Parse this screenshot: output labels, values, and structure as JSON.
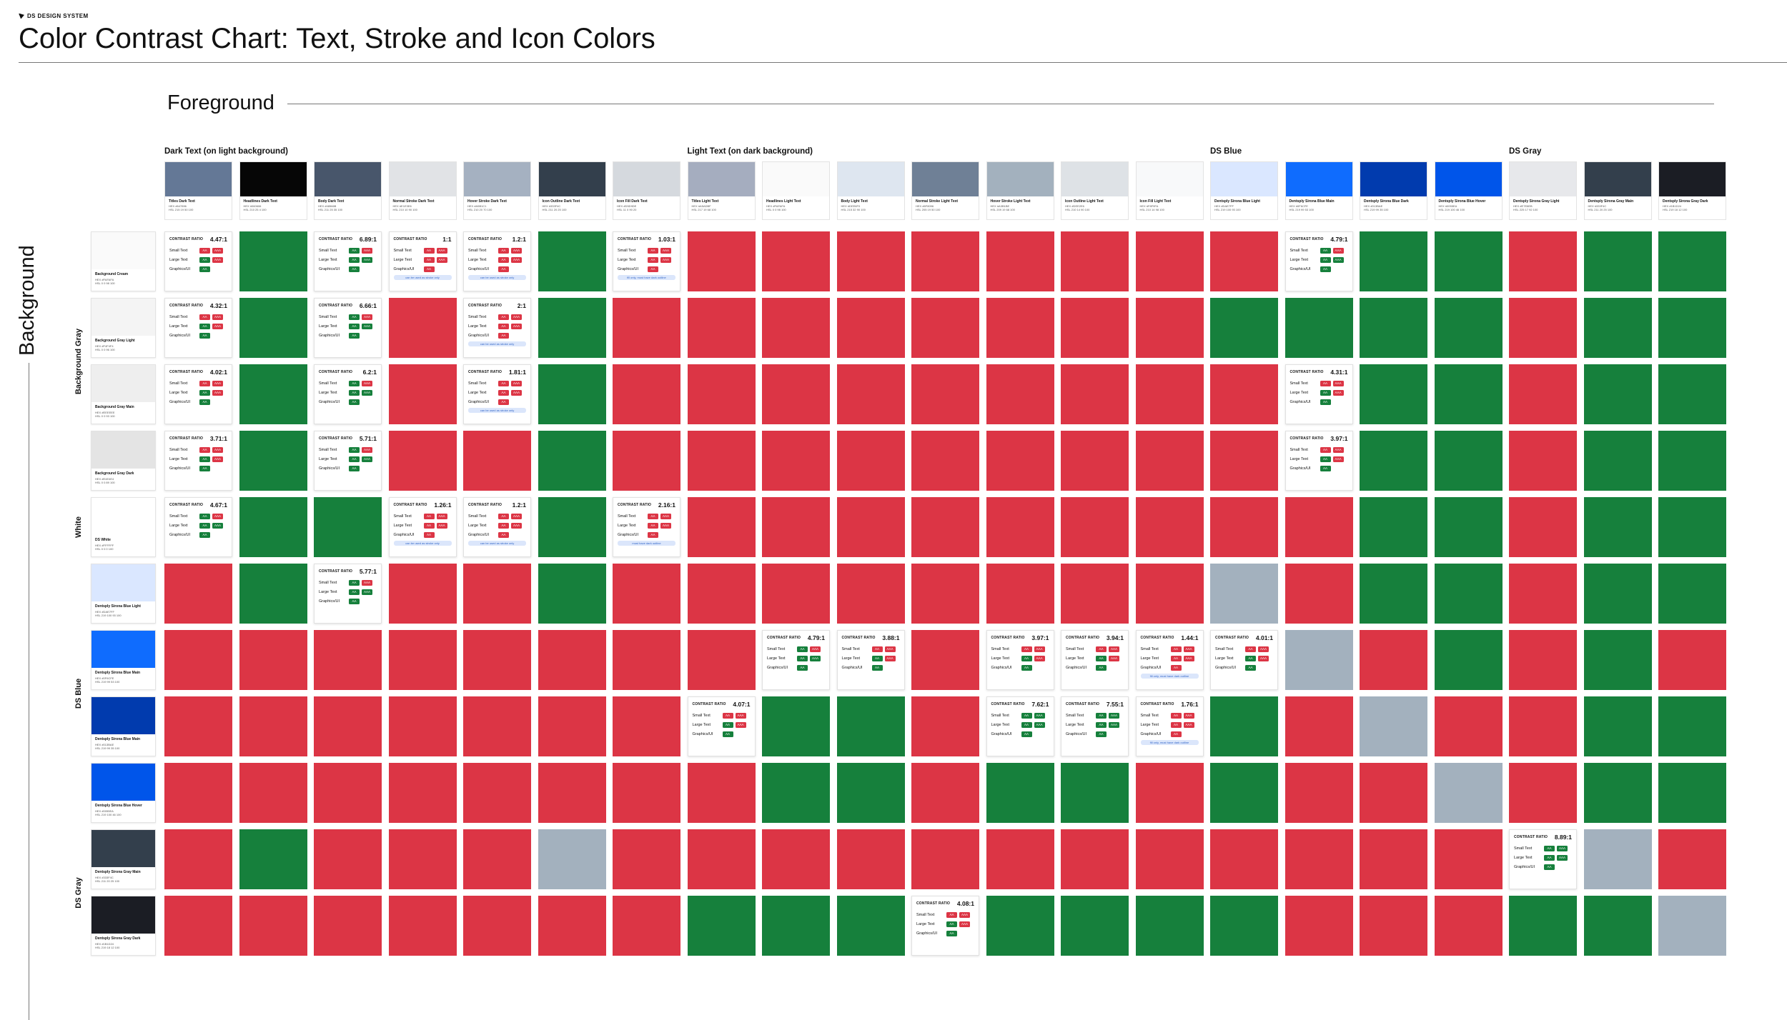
{
  "header": {
    "brand": "DS DESIGN SYSTEM",
    "title": "Color Contrast Chart: Text, Stroke and Icon Colors"
  },
  "foreground_title": "Foreground",
  "background_title": "Background",
  "labels": {
    "contrast_ratio": "CONTRAST RATIO",
    "small_text": "Small Text",
    "large_text": "Large Text",
    "graphics": "Graphics/UI",
    "aa": "AA",
    "aaa": "AAA",
    "hex": "HEX",
    "hsl": "HSL"
  },
  "column_groups": [
    {
      "label": "Dark Text (on light background)",
      "start": 0
    },
    {
      "label": "Light Text (on dark background)",
      "start": 7
    },
    {
      "label": "DS Blue",
      "start": 14
    },
    {
      "label": "DS Gray",
      "start": 18
    }
  ],
  "row_groups": [
    {
      "label": "Background Gray",
      "rows": [
        0,
        3
      ]
    },
    {
      "label": "White",
      "rows": [
        4,
        4
      ]
    },
    {
      "label": "DS Blue",
      "rows": [
        5,
        8
      ]
    },
    {
      "label": "DS Gray",
      "rows": [
        9,
        10
      ]
    }
  ],
  "foregrounds": [
    {
      "name": "Titles Dark Text",
      "hex": "#647896",
      "hsl": "215 19 50 100",
      "color": "#647896"
    },
    {
      "name": "Headlines Dark Text",
      "hex": "#060606",
      "hsl": "210 25 4 100",
      "color": "#060606"
    },
    {
      "name": "Body Dark Text",
      "hex": "#48566B",
      "hsl": "211 25 35 100",
      "color": "#48566b"
    },
    {
      "name": "Normal Stroke Dark Text",
      "hex": "#E1E3E6",
      "hsl": "210 10 90 100",
      "color": "#e1e3e6"
    },
    {
      "name": "Hover Stroke Dark Text",
      "hex": "#A5B1C1",
      "hsl": "210 20 70 100",
      "color": "#a5b1c1"
    },
    {
      "name": "Icon Outline Dark Text",
      "hex": "#333F4C",
      "hsl": "211 20 25 100",
      "color": "#333f4c"
    },
    {
      "name": "Icon Fill Dark Text",
      "hex": "#D5D9DE",
      "hsl": "11 0 90 20",
      "color": "#d5d9de"
    },
    {
      "name": "Titles Light Text",
      "hex": "#A5ADBF",
      "hsl": "217 19 68 100",
      "color": "#a5adbf"
    },
    {
      "name": "Headlines Light Text",
      "hex": "#FAFAFA",
      "hsl": "0 0 98 100",
      "color": "#fafafa"
    },
    {
      "name": "Body Light Text",
      "hex": "#DEE6F0",
      "hsl": "215 32 90 100",
      "color": "#dee6f0"
    },
    {
      "name": "Normal Stroke Light Text",
      "hex": "#6F8096",
      "hsl": "205 19 50 100",
      "color": "#6f8096"
    },
    {
      "name": "Hover Stroke Light Text",
      "hex": "#A3B1BE",
      "hsl": "209 19 68 100",
      "color": "#a3b1be"
    },
    {
      "name": "Icon Outline Light Text",
      "hex": "#DEE2E6",
      "hsl": "210 14 90 100",
      "color": "#dee2e6"
    },
    {
      "name": "Icon Fill Light Text",
      "hex": "#F8F9FA",
      "hsl": "210 14 98 100",
      "color": "#f8f9fa"
    },
    {
      "name": "Dentsply Sirona Blue Light",
      "hex": "#DAE7FF",
      "hsl": "219 100 93 100",
      "color": "#dae7ff"
    },
    {
      "name": "Dentsply Sirona Blue Main",
      "hex": "#0F6CFE",
      "hsl": "219 99 53 100",
      "color": "#0f6cfe"
    },
    {
      "name": "Dentsply Sirona Blue Dark",
      "hex": "#013BAE",
      "hsl": "219 99 35 100",
      "color": "#013bae"
    },
    {
      "name": "Dentsply Sirona Blue Hover",
      "hex": "#0055EA",
      "hsl": "219 100 46 100",
      "color": "#0055ea"
    },
    {
      "name": "Dentsply Sirona Gray Light",
      "hex": "#E7E8EB",
      "hsl": "225 17 92 100",
      "color": "#e7e8eb"
    },
    {
      "name": "Dentsply Sirona Gray Main",
      "hex": "#333F4C",
      "hsl": "211 20 25 100",
      "color": "#333f4c"
    },
    {
      "name": "Dentsply Sirona Gray Dark",
      "hex": "#1B1D24",
      "hsl": "219 18 12 100",
      "color": "#1b1d24"
    }
  ],
  "backgrounds": [
    {
      "name": "Background Cream",
      "hex": "#FAFAFA",
      "hsl": "0 0 98 100",
      "color": "#fafafa"
    },
    {
      "name": "Background Gray Light",
      "hex": "#F4F4F4",
      "hsl": "0 0 96 100",
      "color": "#f4f4f4"
    },
    {
      "name": "Background Gray Main",
      "hex": "#EEEEEE",
      "hsl": "0 0 93 100",
      "color": "#eeeeee"
    },
    {
      "name": "Background Gray Dark",
      "hex": "#E4E4E4",
      "hsl": "0 0 89 100",
      "color": "#e4e4e4"
    },
    {
      "name": "DS White",
      "hex": "#FFFFFF",
      "hsl": "0 0 0 100",
      "color": "#ffffff"
    },
    {
      "name": "Dentsply Sirona Blue Light",
      "hex": "#DAE7FF",
      "hsl": "219 100 93 100",
      "color": "#dae7ff"
    },
    {
      "name": "Dentsply Sirona Blue Main",
      "hex": "#0F6CFE",
      "hsl": "219 99 53 100",
      "color": "#0f6cfe"
    },
    {
      "name": "Dentsply Sirona Blue Main",
      "hex": "#013BAE",
      "hsl": "219 99 35 100",
      "color": "#013bae"
    },
    {
      "name": "Dentsply Sirona Blue Hover",
      "hex": "#0055EA",
      "hsl": "219 100 46 100",
      "color": "#0055ea"
    },
    {
      "name": "Dentsply Sirona Gray Main",
      "hex": "#333F4C",
      "hsl": "211 20 25 100",
      "color": "#333f4c"
    },
    {
      "name": "Dentsply Sirona Gray Dark",
      "hex": "#1B1D24",
      "hsl": "219 18 12 100",
      "color": "#1b1d24"
    }
  ],
  "grid": [
    [
      "4.47:1",
      "P",
      "6.89:1",
      "1:1",
      "1.2:1",
      "P",
      "1.03:1",
      "F",
      "F",
      "F",
      "F",
      "F",
      "F",
      "F",
      "F",
      "4.79:1",
      "P",
      "P",
      "F",
      "P",
      "P"
    ],
    [
      "4.32:1",
      "P",
      "6.66:1",
      "F",
      "2:1",
      "P",
      "F",
      "F",
      "F",
      "F",
      "F",
      "F",
      "F",
      "F",
      "P",
      "P",
      "P",
      "P",
      "F",
      "P",
      "P"
    ],
    [
      "4.02:1",
      "P",
      "6.2:1",
      "F",
      "1.81:1",
      "P",
      "F",
      "F",
      "F",
      "F",
      "F",
      "F",
      "F",
      "F",
      "F",
      "4.31:1",
      "P",
      "P",
      "F",
      "P",
      "P"
    ],
    [
      "3.71:1",
      "P",
      "5.71:1",
      "F",
      "F",
      "P",
      "F",
      "F",
      "F",
      "F",
      "F",
      "F",
      "F",
      "F",
      "F",
      "3.97:1",
      "P",
      "P",
      "F",
      "P",
      "P"
    ],
    [
      "4.67:1",
      "P",
      "P",
      "1.26:1",
      "1.2:1",
      "P",
      "2.16:1",
      "F",
      "F",
      "F",
      "F",
      "F",
      "F",
      "F",
      "F",
      "F",
      "P",
      "P",
      "F",
      "P",
      "P"
    ],
    [
      "F",
      "P",
      "5.77:1",
      "F",
      "F",
      "P",
      "F",
      "F",
      "F",
      "F",
      "F",
      "F",
      "F",
      "F",
      "N",
      "F",
      "P",
      "P",
      "F",
      "P",
      "P"
    ],
    [
      "F",
      "F",
      "F",
      "F",
      "F",
      "F",
      "F",
      "F",
      "4.79:1",
      "3.88:1",
      "F",
      "3.97:1",
      "3.94:1",
      "1.44:1",
      "4.01:1",
      "N",
      "F",
      "P",
      "F",
      "P",
      "F"
    ],
    [
      "F",
      "F",
      "F",
      "F",
      "F",
      "F",
      "F",
      "4.07:1",
      "P",
      "P",
      "F",
      "7.62:1",
      "7.55:1",
      "1.76:1",
      "P",
      "F",
      "N",
      "F",
      "F",
      "P",
      "P"
    ],
    [
      "F",
      "F",
      "F",
      "F",
      "F",
      "F",
      "F",
      "F",
      "P",
      "P",
      "F",
      "P",
      "P",
      "F",
      "P",
      "F",
      "F",
      "N",
      "F",
      "P",
      "P"
    ],
    [
      "F",
      "P",
      "F",
      "F",
      "F",
      "N",
      "F",
      "F",
      "F",
      "F",
      "F",
      "F",
      "F",
      "F",
      "F",
      "F",
      "F",
      "F",
      "8.89:1",
      "N",
      "F"
    ],
    [
      "F",
      "F",
      "F",
      "F",
      "F",
      "F",
      "F",
      "P",
      "P",
      "P",
      "4.08:1",
      "P",
      "P",
      "P",
      "P",
      "F",
      "F",
      "F",
      "P",
      "P",
      "N"
    ]
  ],
  "badges": {
    "4.47:1": [
      "F",
      "F",
      "P",
      "F",
      "P"
    ],
    "6.89:1": [
      "P",
      "F",
      "P",
      "P",
      "P"
    ],
    "1:1": [
      "F",
      "F",
      "F",
      "F",
      "F"
    ],
    "1.2:1": [
      "F",
      "F",
      "F",
      "F",
      "F"
    ],
    "1.03:1": [
      "F",
      "F",
      "F",
      "F",
      "F"
    ],
    "4.79:1": [
      "P",
      "F",
      "P",
      "P",
      "P"
    ],
    "4.32:1": [
      "F",
      "F",
      "P",
      "F",
      "P"
    ],
    "6.66:1": [
      "P",
      "F",
      "P",
      "P",
      "P"
    ],
    "2:1": [
      "F",
      "F",
      "F",
      "F",
      "F"
    ],
    "4.02:1": [
      "F",
      "F",
      "P",
      "F",
      "P"
    ],
    "6.2:1": [
      "P",
      "F",
      "P",
      "P",
      "P"
    ],
    "1.81:1": [
      "F",
      "F",
      "F",
      "F",
      "F"
    ],
    "4.31:1": [
      "F",
      "F",
      "P",
      "F",
      "P"
    ],
    "3.71:1": [
      "F",
      "F",
      "P",
      "F",
      "P"
    ],
    "5.71:1": [
      "P",
      "F",
      "P",
      "P",
      "P"
    ],
    "3.97:1": [
      "F",
      "F",
      "P",
      "F",
      "P"
    ],
    "4.67:1": [
      "P",
      "F",
      "P",
      "P",
      "P"
    ],
    "1.26:1": [
      "F",
      "F",
      "F",
      "F",
      "F"
    ],
    "2.16:1": [
      "F",
      "F",
      "F",
      "F",
      "F"
    ],
    "5.77:1": [
      "P",
      "F",
      "P",
      "P",
      "P"
    ],
    "3.88:1": [
      "F",
      "F",
      "P",
      "F",
      "P"
    ],
    "3.94:1": [
      "F",
      "F",
      "P",
      "F",
      "P"
    ],
    "1.44:1": [
      "F",
      "F",
      "F",
      "F",
      "F"
    ],
    "4.01:1": [
      "F",
      "F",
      "P",
      "F",
      "P"
    ],
    "4.07:1": [
      "F",
      "F",
      "P",
      "F",
      "P"
    ],
    "7.62:1": [
      "P",
      "P",
      "P",
      "P",
      "P"
    ],
    "7.55:1": [
      "P",
      "P",
      "P",
      "P",
      "P"
    ],
    "1.76:1": [
      "F",
      "F",
      "F",
      "F",
      "F"
    ],
    "8.89:1": [
      "P",
      "P",
      "P",
      "P",
      "P"
    ],
    "4.08:1": [
      "F",
      "F",
      "P",
      "F",
      "P"
    ]
  },
  "notes": {
    "0-3": "can be used as stroke only",
    "0-4": "can be used as stroke only",
    "0-6": "fill only, must have dark outline",
    "1-4": "can be used as stroke only",
    "2-4": "can be used as stroke only",
    "4-3": "can be used as stroke only",
    "4-4": "can be used as stroke only",
    "4-6": "must have dark outline",
    "6-13": "fill only, must have dark outline",
    "7-13": "fill only, must have dark outline"
  }
}
